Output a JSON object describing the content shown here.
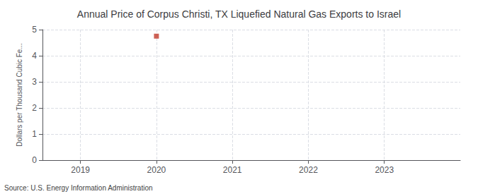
{
  "chart_data": {
    "type": "scatter",
    "title": "Annual Price of Corpus Christi, TX Liquefied Natural Gas Exports to Israel",
    "ylabel": "Dollars per Thousand Cubic Fe...",
    "source": "Source: U.S. Energy Information Administration",
    "x": [
      2020
    ],
    "values": [
      4.75
    ],
    "color": "#c0392b",
    "marker": "square",
    "xlim": [
      2018.5,
      2024.0
    ],
    "xticks": [
      2019,
      2020,
      2021,
      2022,
      2023
    ],
    "ylim": [
      0,
      5
    ],
    "yticks": [
      0,
      1,
      2,
      3,
      4,
      5
    ],
    "grid": true
  }
}
